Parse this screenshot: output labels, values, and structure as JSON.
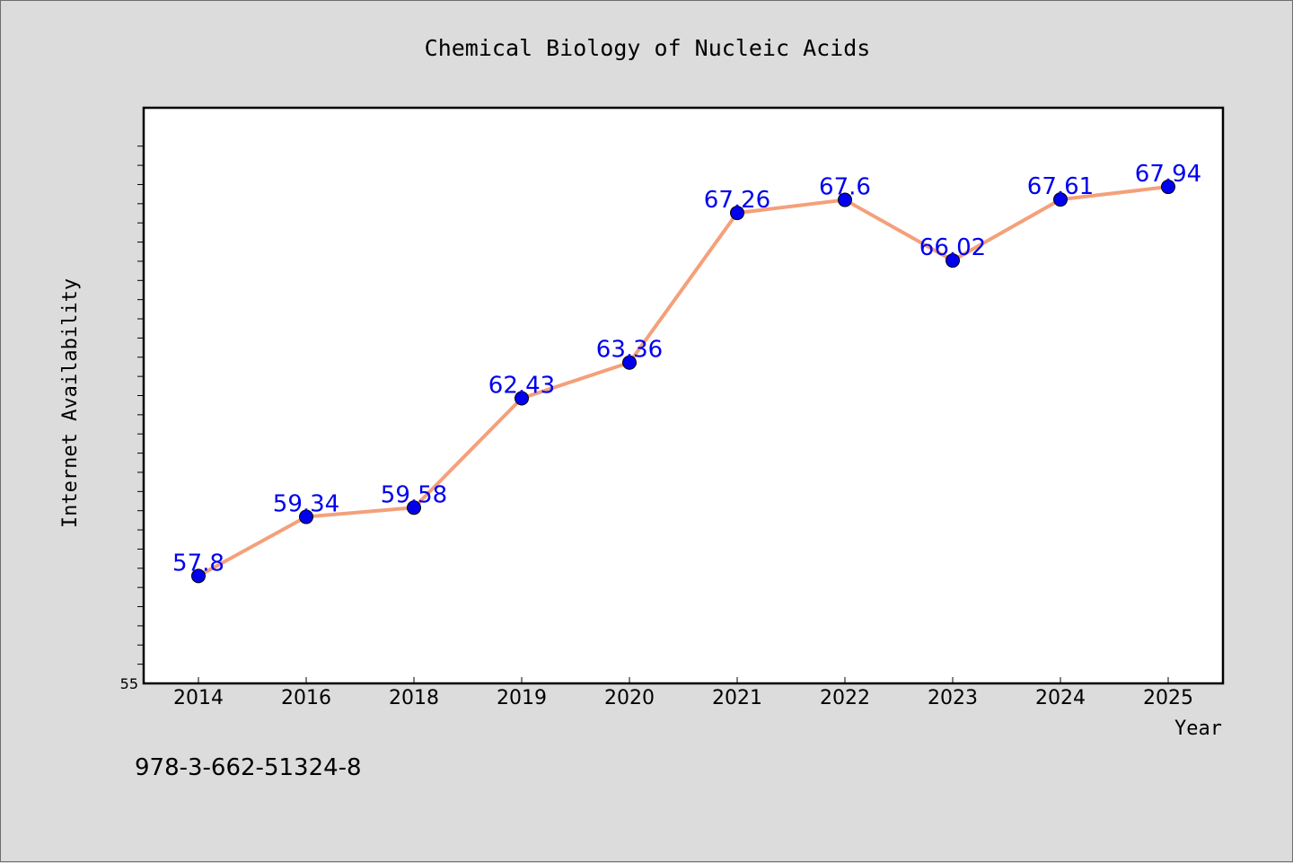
{
  "chart_data": {
    "type": "line",
    "title": "Chemical Biology of Nucleic Acids",
    "xlabel": "Year",
    "ylabel": "Internet Availability",
    "categories": [
      "2014",
      "2016",
      "2018",
      "2019",
      "2020",
      "2021",
      "2022",
      "2023",
      "2024",
      "2025"
    ],
    "series": [
      {
        "values": [
          57.8,
          59.34,
          59.58,
          62.43,
          63.36,
          67.26,
          67.6,
          66.02,
          67.61,
          67.94
        ],
        "labels": [
          "57.8",
          "59.34",
          "59.58",
          "62.43",
          "63.36",
          "67.26",
          "67.6",
          "66.02",
          "67.61",
          "67.94"
        ]
      }
    ],
    "ylim": [
      55,
      70
    ],
    "y_tick_labels": [
      "55"
    ],
    "line_color": "#f4a07a",
    "marker_color": "#0000ee",
    "label_color": "#0000ee",
    "grid": false,
    "legend": "none"
  },
  "footer_text": "978-3-662-51324-8"
}
